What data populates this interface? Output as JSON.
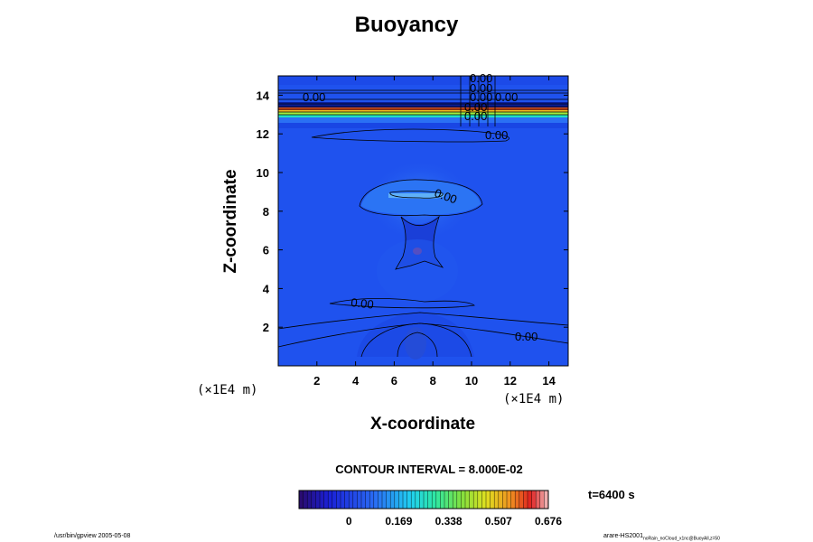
{
  "chart_data": {
    "type": "heatmap",
    "title": "Buoyancy",
    "xlabel": "X-coordinate",
    "ylabel": "Z-coordinate",
    "x_unit": "(×1E4 m)",
    "y_unit": "(×1E4 m)",
    "xlim": [
      0,
      15
    ],
    "ylim": [
      0,
      15
    ],
    "x_ticks": [
      "2",
      "4",
      "6",
      "8",
      "10",
      "12",
      "14"
    ],
    "y_ticks": [
      "2",
      "4",
      "6",
      "8",
      "10",
      "12",
      "14"
    ],
    "contour_labels": [
      "0.00",
      "0.00",
      "0.00",
      "0.00",
      "0.00",
      "0.00",
      "0.00",
      "0.00",
      "0.00",
      "0.00",
      "0.00"
    ],
    "contour_interval": "CONTOUR INTERVAL = 8.000E-02",
    "colorbar": {
      "ticks": [
        "0",
        "0.169",
        "0.338",
        "0.507",
        "0.676"
      ],
      "range": [
        -0.169,
        0.676
      ]
    },
    "time_label": "t=6400 s"
  },
  "footer": {
    "left": "/usr/bin/gpview 2005-05-08",
    "right_main": "arare-HS2001",
    "right_sub": "noRain_noCloud_x1nc@BuoyAll,z=50"
  }
}
